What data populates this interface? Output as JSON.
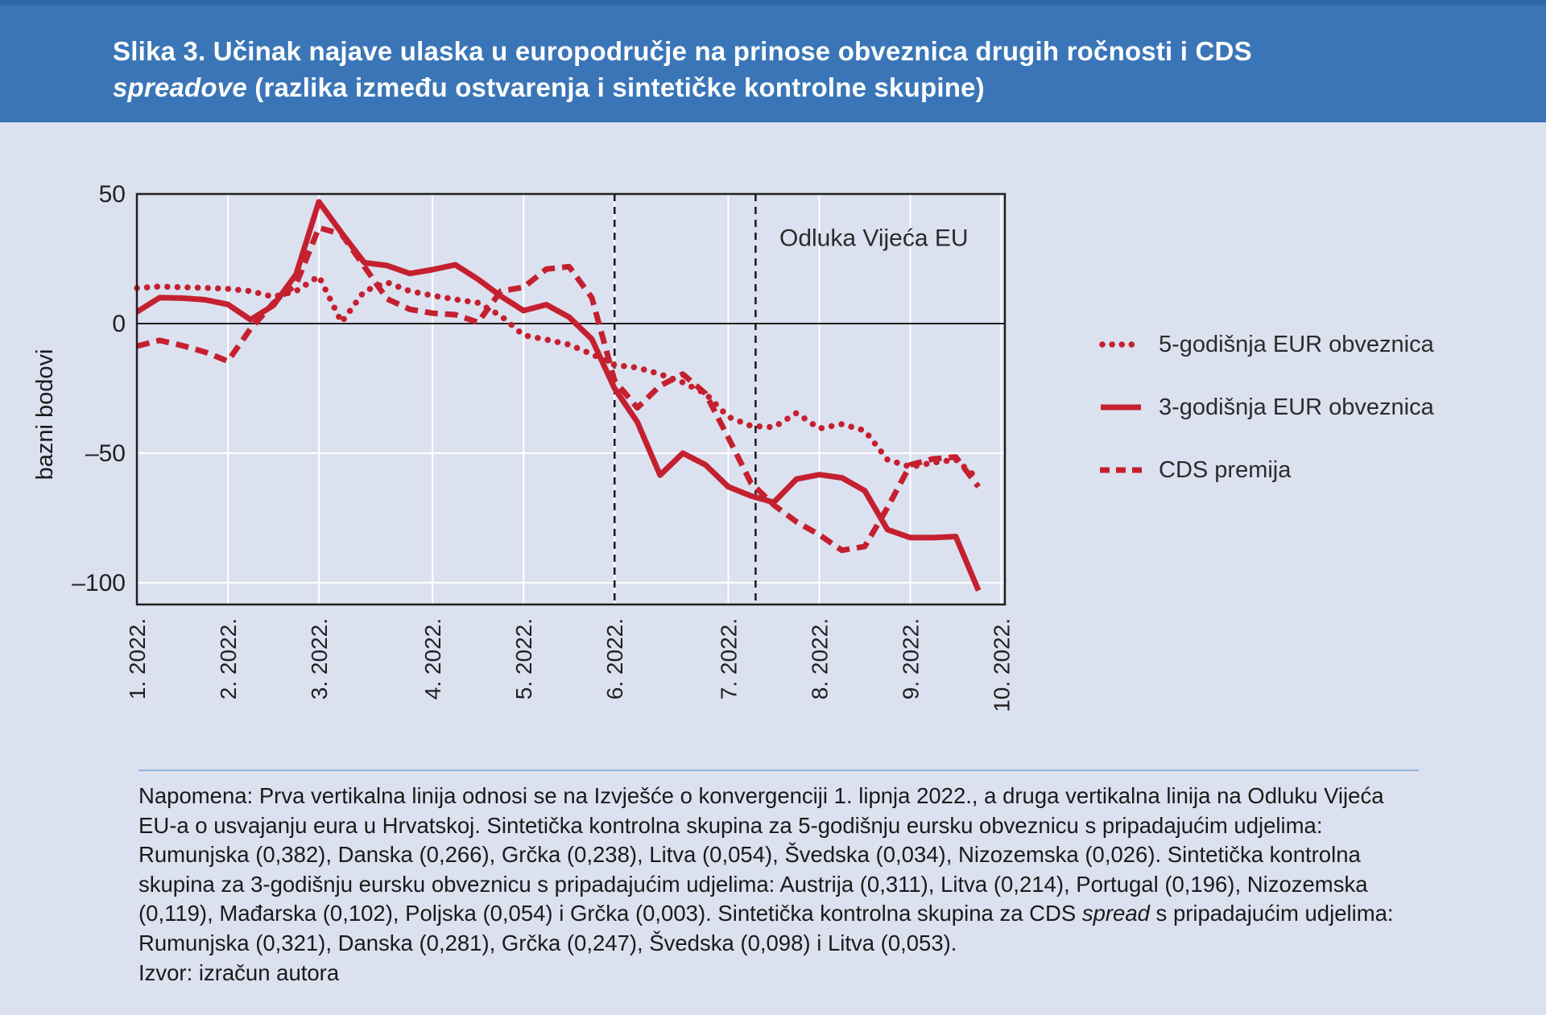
{
  "title": {
    "part1": "Slika 3. Učinak najave ulaska u europodručje na prinose obveznica drugih ročnosti i CDS ",
    "italic": "spreadove",
    "part2": " (razlika između ostvarenja i sintetičke kontrolne skupine)"
  },
  "chart_data": {
    "type": "line",
    "title": "",
    "xlabel": "",
    "ylabel": "bazni bodovi",
    "x_unit": "weeks from 1.1.2022 (weekly observations)",
    "xlim": [
      0,
      38.16
    ],
    "ylim": [
      -108.4,
      50
    ],
    "grid": "on",
    "yticks": {
      "values": [
        50,
        0,
        -50,
        -100
      ],
      "labels": [
        "50",
        "0",
        "–50",
        "–100"
      ]
    },
    "xticks": {
      "weeks": [
        0,
        4,
        8,
        13,
        17,
        21,
        26,
        30,
        34,
        38
      ],
      "labels": [
        "1. 2022.",
        "2. 2022.",
        "3. 2022.",
        "4. 2022.",
        "5. 2022.",
        "6. 2022.",
        "7. 2022.",
        "8. 2022.",
        "9. 2022.",
        "10. 2022."
      ]
    },
    "event_lines": {
      "weeks": [
        21,
        27.2
      ],
      "meaning": [
        "Izvješće o konvergenciji 1. lipnja 2022.",
        "Odluka Vijeća EU-a"
      ]
    },
    "annotation": {
      "text": "Odluka Vijeća EU",
      "week": 32.4,
      "value": 30
    },
    "legend_position": "right",
    "series": [
      {
        "name": "5-godišnja EUR obveznica",
        "style": "dotted",
        "values": [
          13.7,
          14.3,
          14,
          13.8,
          13.4,
          12.5,
          10.3,
          12.5,
          18.3,
          0.5,
          12.5,
          15.9,
          12.5,
          10.8,
          9.3,
          8,
          3,
          -4.5,
          -6.2,
          -8.1,
          -11.8,
          -16,
          -17,
          -19.5,
          -22.7,
          -27,
          -36,
          -39.5,
          -40,
          -34.5,
          -40.5,
          -38.8,
          -41.3,
          -52.5,
          -55.3,
          -53.7,
          -52.5,
          -60
        ]
      },
      {
        "name": "3-godišnja EUR obveznica",
        "style": "solid",
        "values": [
          4.5,
          10,
          9.8,
          9.2,
          7.4,
          1.5,
          7,
          19,
          47,
          35,
          23.5,
          22.4,
          19.3,
          20.8,
          22.7,
          17.1,
          10.6,
          5,
          7.3,
          2.5,
          -6,
          -25,
          -38,
          -58.5,
          -50,
          -54.5,
          -63,
          -66.5,
          -69,
          -60,
          -58.3,
          -59.5,
          -64.5,
          -79.5,
          -82.6,
          -82.6,
          -82.2,
          -103
        ]
      },
      {
        "name": "CDS premija",
        "style": "dashed",
        "values": [
          -8.7,
          -6.5,
          -8.5,
          -11,
          -14.5,
          -2,
          7.9,
          15.1,
          37,
          34.5,
          22,
          9.5,
          5.5,
          4,
          3.4,
          0.5,
          12.5,
          14,
          21,
          22,
          10,
          -22,
          -32.5,
          -24,
          -19.5,
          -27,
          -44,
          -61.5,
          -70,
          -76.5,
          -81.5,
          -87.5,
          -86,
          -71,
          -54.5,
          -52.2,
          -51.5,
          -63
        ]
      }
    ],
    "colors": {
      "line": "#C5202F",
      "grid": "#FFFFFF",
      "axis": "#231F20",
      "plot_bg": "#DCE1F0",
      "annotation_text": "#2B2B2B"
    }
  },
  "legend": {
    "items": [
      {
        "label": "5-godišnja EUR obveznica",
        "style": "dotted"
      },
      {
        "label": "3-godišnja EUR obveznica",
        "style": "solid"
      },
      {
        "label": "CDS premija",
        "style": "dashed"
      }
    ]
  },
  "note": {
    "part1": "Napomena: Prva vertikalna linija odnosi se na Izvješće o konvergenciji 1. lipnja 2022., a druga vertikalna linija na Odluku Vijeća EU-a o usvajanju eura u Hrvatskoj. Sintetička kontrolna skupina za 5-godišnju eursku obveznicu s pripadajućim udjelima: Rumunjska (0,382), Danska (0,266), Grčka (0,238), Litva (0,054), Švedska (0,034), Nizozemska (0,026). Sintetička kontrolna skupina za 3-godišnju eursku obveznicu s pripadajućim udjelima: Austrija (0,311), Litva (0,214), Portugal (0,196), Nizozemska (0,119), Mađarska (0,102), Poljska (0,054) i Grčka (0,003). Sintetička kontrolna skupina za CDS ",
    "italic": "spread",
    "part2": " s pripadajućim udjelima: Rumunjska (0,321), Danska (0,281), Grčka (0,247), Švedska (0,098) i Litva (0,053).",
    "source": "Izvor: izračun autora"
  }
}
